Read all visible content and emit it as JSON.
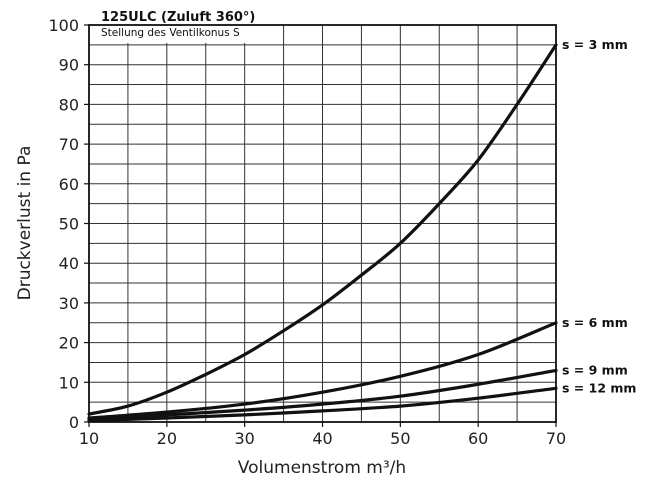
{
  "chart_data": {
    "type": "line",
    "title": "125ULC (Zuluft 360°)",
    "subtitle": "Stellung des Ventilkonus S",
    "xlabel": "Volumenstrom m³/h",
    "ylabel": "Druckverlust in Pa",
    "xlim": [
      10,
      70
    ],
    "ylim": [
      0,
      100
    ],
    "x_ticks": [
      10,
      20,
      30,
      40,
      50,
      60,
      70
    ],
    "y_ticks": [
      0,
      10,
      20,
      30,
      40,
      50,
      60,
      70,
      80,
      90,
      100
    ],
    "x_minor_step": 5,
    "grid": true,
    "series": [
      {
        "name": "s = 3 mm",
        "x": [
          10,
          15,
          20,
          25,
          30,
          35,
          40,
          45,
          50,
          55,
          60,
          65,
          70
        ],
        "y": [
          2,
          4,
          7.5,
          12,
          17,
          23,
          29.5,
          37,
          45,
          55,
          66,
          80,
          95
        ]
      },
      {
        "name": "s = 6 mm",
        "x": [
          10,
          20,
          30,
          40,
          50,
          60,
          70
        ],
        "y": [
          1,
          2.5,
          4.5,
          7.5,
          11.5,
          17,
          25
        ]
      },
      {
        "name": "s = 9 mm",
        "x": [
          10,
          20,
          30,
          40,
          50,
          60,
          70
        ],
        "y": [
          0.5,
          1.8,
          3,
          4.5,
          6.5,
          9.5,
          13
        ]
      },
      {
        "name": "s = 12 mm",
        "x": [
          10,
          20,
          30,
          40,
          50,
          60,
          70
        ],
        "y": [
          0.3,
          1,
          1.8,
          2.8,
          4,
          6,
          8.5
        ]
      }
    ]
  }
}
